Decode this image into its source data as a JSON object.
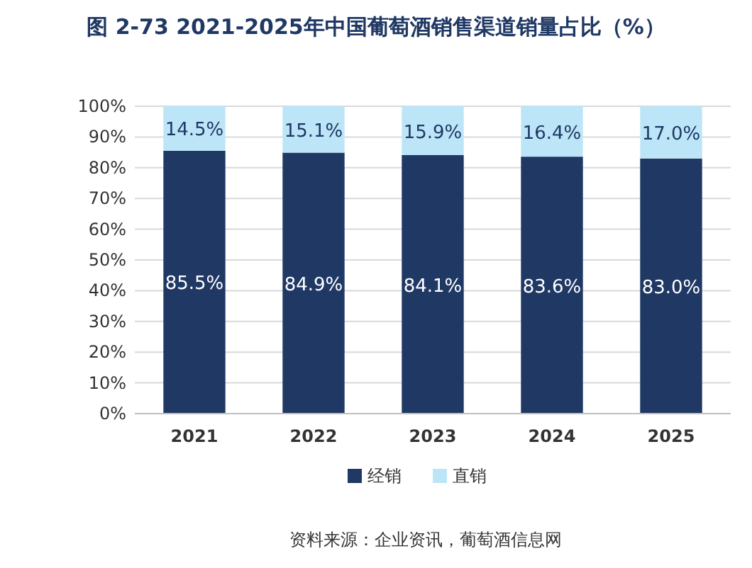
{
  "chart_data": {
    "type": "bar",
    "title": "图 2-73 2021-2025年中国葡萄酒销售渠道销量占比（%）",
    "categories": [
      "2021",
      "2022",
      "2023",
      "2024",
      "2025"
    ],
    "stacked": true,
    "series": [
      {
        "name": "经销",
        "color": "#1f3864",
        "values": [
          85.5,
          84.9,
          84.1,
          83.6,
          83.0
        ],
        "value_labels": [
          "85.5%",
          "84.9%",
          "84.1%",
          "83.6%",
          "83.0%"
        ]
      },
      {
        "name": "直销",
        "color": "#bde5f8",
        "values": [
          14.5,
          15.1,
          15.9,
          16.4,
          17.0
        ],
        "value_labels": [
          "14.5%",
          "15.1%",
          "15.9%",
          "16.4%",
          "17.0%"
        ]
      }
    ],
    "ylim": [
      0,
      100
    ],
    "yticks": [
      {
        "value": 0,
        "label": "0%"
      },
      {
        "value": 10,
        "label": "10%"
      },
      {
        "value": 20,
        "label": "20%"
      },
      {
        "value": 30,
        "label": "30%"
      },
      {
        "value": 40,
        "label": "40%"
      },
      {
        "value": 50,
        "label": "50%"
      },
      {
        "value": 60,
        "label": "60%"
      },
      {
        "value": 70,
        "label": "70%"
      },
      {
        "value": 80,
        "label": "80%"
      },
      {
        "value": 90,
        "label": "90%"
      },
      {
        "value": 100,
        "label": "100%"
      }
    ],
    "grid": "y",
    "legend": "bottom",
    "annotations": [
      "资料来源：企业资讯，葡萄酒信息网"
    ]
  }
}
